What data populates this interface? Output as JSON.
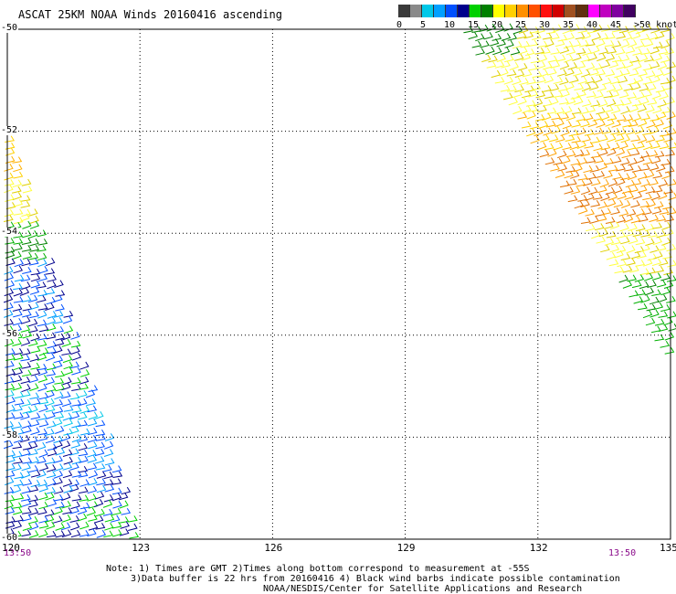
{
  "title": "ASCAT 25KM NOAA Winds 20160416 ascending",
  "colorbar": {
    "colors": [
      "#3a3a3a",
      "#8a8a8a",
      "#00c8e8",
      "#00a0ff",
      "#0050ff",
      "#00008c",
      "#00d000",
      "#008000",
      "#ffff00",
      "#ffd000",
      "#ff9000",
      "#ff5000",
      "#ff1010",
      "#d00000",
      "#a05020",
      "#603010",
      "#ff00ff",
      "#c000c0",
      "#8000a0",
      "#400060"
    ],
    "labels": [
      "0",
      "5",
      "10",
      "15",
      "20",
      "25",
      "30",
      "35",
      "40",
      "45",
      ">50 knots"
    ]
  },
  "map": {
    "lat_range": [
      -60,
      -50
    ],
    "lon_range": [
      120,
      135
    ],
    "lat_labels": [
      "-50",
      "-52",
      "-54",
      "-56",
      "-58",
      "-60"
    ],
    "lon_labels": [
      "120",
      "123",
      "126",
      "129",
      "132",
      "135"
    ],
    "grid": true
  },
  "times": {
    "left": "13:50",
    "right": "13:50"
  },
  "notes": [
    "Note: 1) Times are GMT 2)Times along bottom correspond to measurement at -55S",
    "3)Data buffer is 22 hrs from 20160416 4) Black wind barbs indicate possible contamination",
    "NOAA/NESDIS/Center for Satellite Applications and Research"
  ]
}
